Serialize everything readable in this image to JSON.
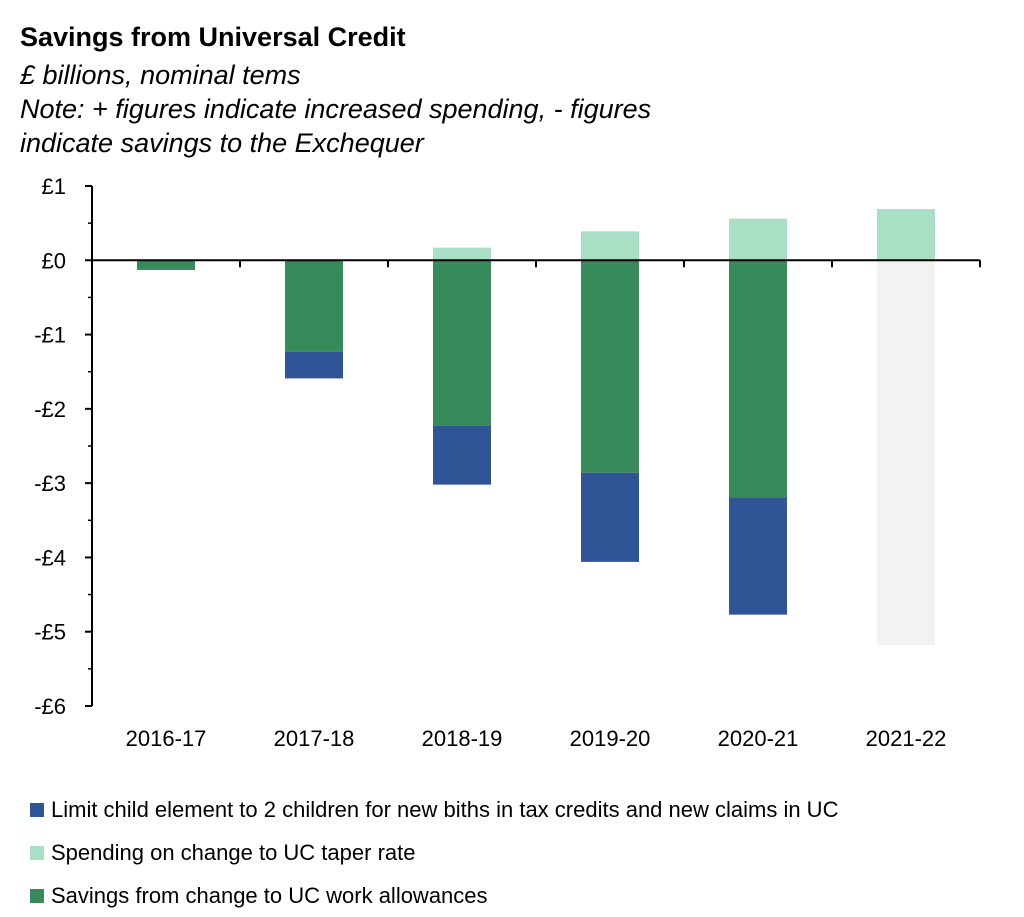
{
  "header": {
    "title": "Savings from Universal Credit",
    "subtitle_lines": [
      "£ billions, nominal tems",
      "Note: + figures indicate increased spending, - figures",
      "indicate savings to the Exchequer"
    ]
  },
  "chart_data": {
    "type": "bar",
    "stacked": true,
    "title": "Savings from Universal Credit",
    "subtitle": "£ billions, nominal tems",
    "note": "Note: + figures indicate increased spending, - figures indicate savings to the Exchequer",
    "categories": [
      "2016-17",
      "2017-18",
      "2018-19",
      "2019-20",
      "2020-21",
      "2021-22"
    ],
    "ylim": [
      -6,
      1
    ],
    "yticks": [
      1,
      0,
      -1,
      -2,
      -3,
      -4,
      -5,
      -6
    ],
    "ytick_labels": [
      "£1",
      "£0",
      "-£1",
      "-£2",
      "-£3",
      "-£4",
      "-£5",
      "-£6"
    ],
    "grid": false,
    "legend_position": "bottom",
    "series": [
      {
        "name": "Limit child element to 2 children for new biths in tax credits and new claims in UC",
        "color": "#2f5597",
        "values": [
          0,
          -0.36,
          -0.79,
          -1.2,
          -1.58,
          null
        ]
      },
      {
        "name": "Spending on change to UC taper rate",
        "color": "#a9dfc4",
        "values": [
          0,
          0,
          0.17,
          0.39,
          0.56,
          0.69
        ]
      },
      {
        "name": "Savings from change to UC work allowances",
        "color": "#378a5a",
        "values": [
          -0.13,
          -1.23,
          -2.23,
          -2.86,
          -3.19,
          null
        ]
      }
    ],
    "extra_bars": [
      {
        "category": "2021-22",
        "value": -5.18,
        "color": "#f2f2f2"
      }
    ]
  }
}
